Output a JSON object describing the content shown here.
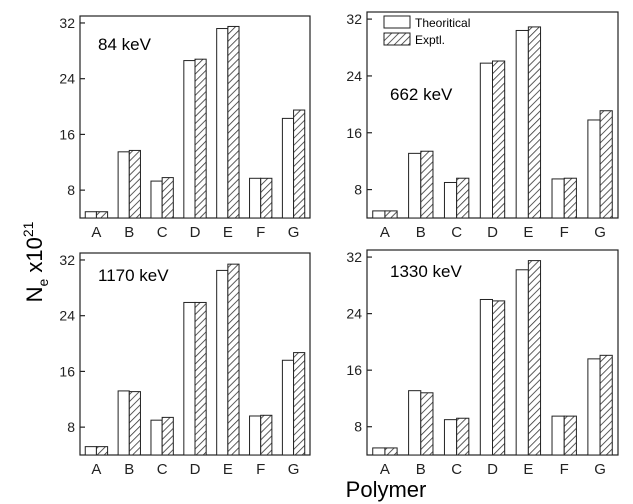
{
  "figure": {
    "ylabel_main": "N",
    "ylabel_sub": "e",
    "ylabel_mid": " x10",
    "ylabel_sup": "21",
    "xlabel": "Polymer"
  },
  "colors": {
    "theoretical_fill": "#ffffff",
    "exptl_hatch": "#333333",
    "axis": "#222222"
  },
  "chart_data": [
    {
      "type": "bar",
      "title": "84 keV",
      "categories": [
        "A",
        "B",
        "C",
        "D",
        "E",
        "F",
        "G"
      ],
      "ylim": [
        4,
        33
      ],
      "yticks": [
        8,
        16,
        24,
        32
      ],
      "series": [
        {
          "name": "Theoritical",
          "values": [
            4.9,
            13.5,
            9.3,
            26.6,
            31.2,
            9.7,
            18.3
          ]
        },
        {
          "name": "Exptl.",
          "values": [
            4.9,
            13.7,
            9.8,
            26.8,
            31.5,
            9.7,
            19.5
          ]
        }
      ]
    },
    {
      "type": "bar",
      "title": "662 keV",
      "categories": [
        "A",
        "B",
        "C",
        "D",
        "E",
        "F",
        "G"
      ],
      "ylim": [
        4,
        33
      ],
      "yticks": [
        8,
        16,
        24,
        32
      ],
      "legend": "top-left",
      "series": [
        {
          "name": "Theoritical",
          "values": [
            5.0,
            13.1,
            9.0,
            25.8,
            30.4,
            9.5,
            17.8
          ]
        },
        {
          "name": "Exptl.",
          "values": [
            5.0,
            13.4,
            9.6,
            26.1,
            30.9,
            9.6,
            19.1
          ]
        }
      ]
    },
    {
      "type": "bar",
      "title": "1170 keV",
      "categories": [
        "A",
        "B",
        "C",
        "D",
        "E",
        "F",
        "G"
      ],
      "ylim": [
        4,
        33
      ],
      "yticks": [
        8,
        16,
        24,
        32
      ],
      "series": [
        {
          "name": "Theoritical",
          "values": [
            5.2,
            13.2,
            9.0,
            25.9,
            30.5,
            9.6,
            17.6
          ]
        },
        {
          "name": "Exptl.",
          "values": [
            5.2,
            13.1,
            9.4,
            25.9,
            31.4,
            9.7,
            18.7
          ]
        }
      ]
    },
    {
      "type": "bar",
      "title": "1330 keV",
      "categories": [
        "A",
        "B",
        "C",
        "D",
        "E",
        "F",
        "G"
      ],
      "ylim": [
        4,
        33
      ],
      "yticks": [
        8,
        16,
        24,
        32
      ],
      "series": [
        {
          "name": "Theoritical",
          "values": [
            5.0,
            13.1,
            9.0,
            26.0,
            30.2,
            9.5,
            17.6
          ]
        },
        {
          "name": "Exptl.",
          "values": [
            5.0,
            12.8,
            9.2,
            25.8,
            31.5,
            9.5,
            18.1
          ]
        }
      ]
    }
  ]
}
